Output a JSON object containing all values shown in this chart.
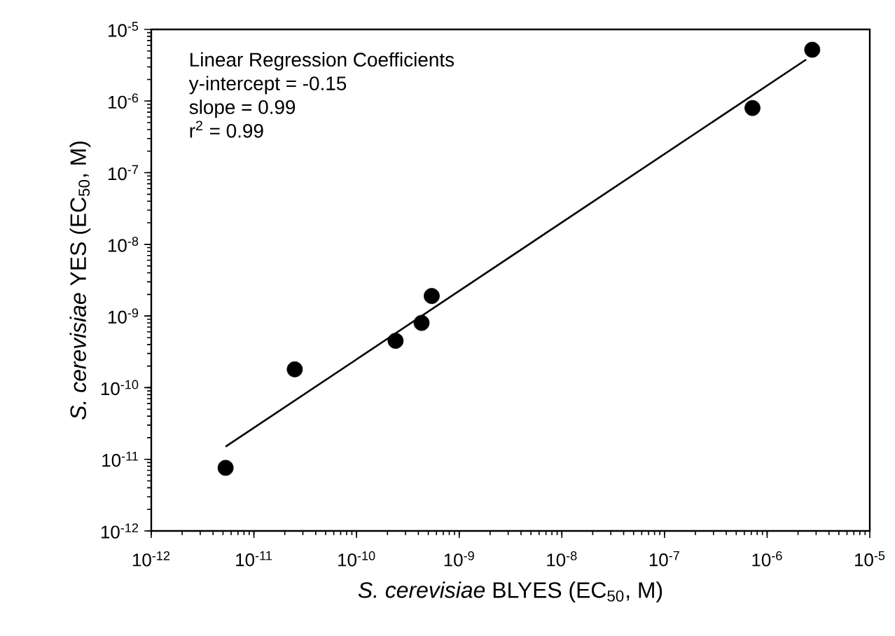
{
  "chart_data": {
    "type": "scatter",
    "xlabel": "*S. cerevisiae* BLYES (EC$_{50}$, M)",
    "ylabel": "*S. cerevisiae* YES (EC$_{50}$, M)",
    "annotations": [
      "Linear Regression Coefficients",
      "y-intercept = -0.15",
      "slope = 0.99",
      "r$^{2}$ = 0.99"
    ],
    "log": "xy",
    "grid": false,
    "xlim": [
      1e-12,
      1e-05
    ],
    "ylim": [
      1e-12,
      1e-05
    ],
    "xticks": [
      {
        "value": 1e-12,
        "label": "10$^{-12}$"
      },
      {
        "value": 1e-11,
        "label": "10$^{-11}$"
      },
      {
        "value": 1e-10,
        "label": "10$^{-10}$"
      },
      {
        "value": 1e-09,
        "label": "10$^{-9}$"
      },
      {
        "value": 1e-08,
        "label": "10$^{-8}$"
      },
      {
        "value": 1e-07,
        "label": "10$^{-7}$"
      },
      {
        "value": 1e-06,
        "label": "10$^{-6}$"
      },
      {
        "value": 1e-05,
        "label": "10$^{-5}$"
      }
    ],
    "yticks": [
      {
        "value": 1e-12,
        "label": "10$^{-12}$"
      },
      {
        "value": 1e-11,
        "label": "10$^{-11}$"
      },
      {
        "value": 1e-10,
        "label": "10$^{-10}$"
      },
      {
        "value": 1e-09,
        "label": "10$^{-9}$"
      },
      {
        "value": 1e-08,
        "label": "10$^{-8}$"
      },
      {
        "value": 1e-07,
        "label": "10$^{-7}$"
      },
      {
        "value": 1e-06,
        "label": "10$^{-6}$"
      },
      {
        "value": 1e-05,
        "label": "10$^{-5}$"
      }
    ],
    "series": [
      {
        "color": "#000000",
        "marker": "circle",
        "x": [
          5.3e-12,
          2.5e-11,
          2.4e-10,
          4.3e-10,
          5.4e-10,
          7.2e-07,
          2.75e-06
        ],
        "values": [
          7.6e-12,
          1.8e-10,
          4.5e-10,
          8e-10,
          1.9e-09,
          8e-07,
          5.2e-06
        ]
      },
      {
        "type": "line",
        "color": "#000000",
        "marker": "none",
        "line_style": "solid",
        "x": [
          5.3e-12,
          2.4e-06
        ],
        "values": [
          1.5e-11,
          3.8e-06
        ]
      }
    ]
  }
}
